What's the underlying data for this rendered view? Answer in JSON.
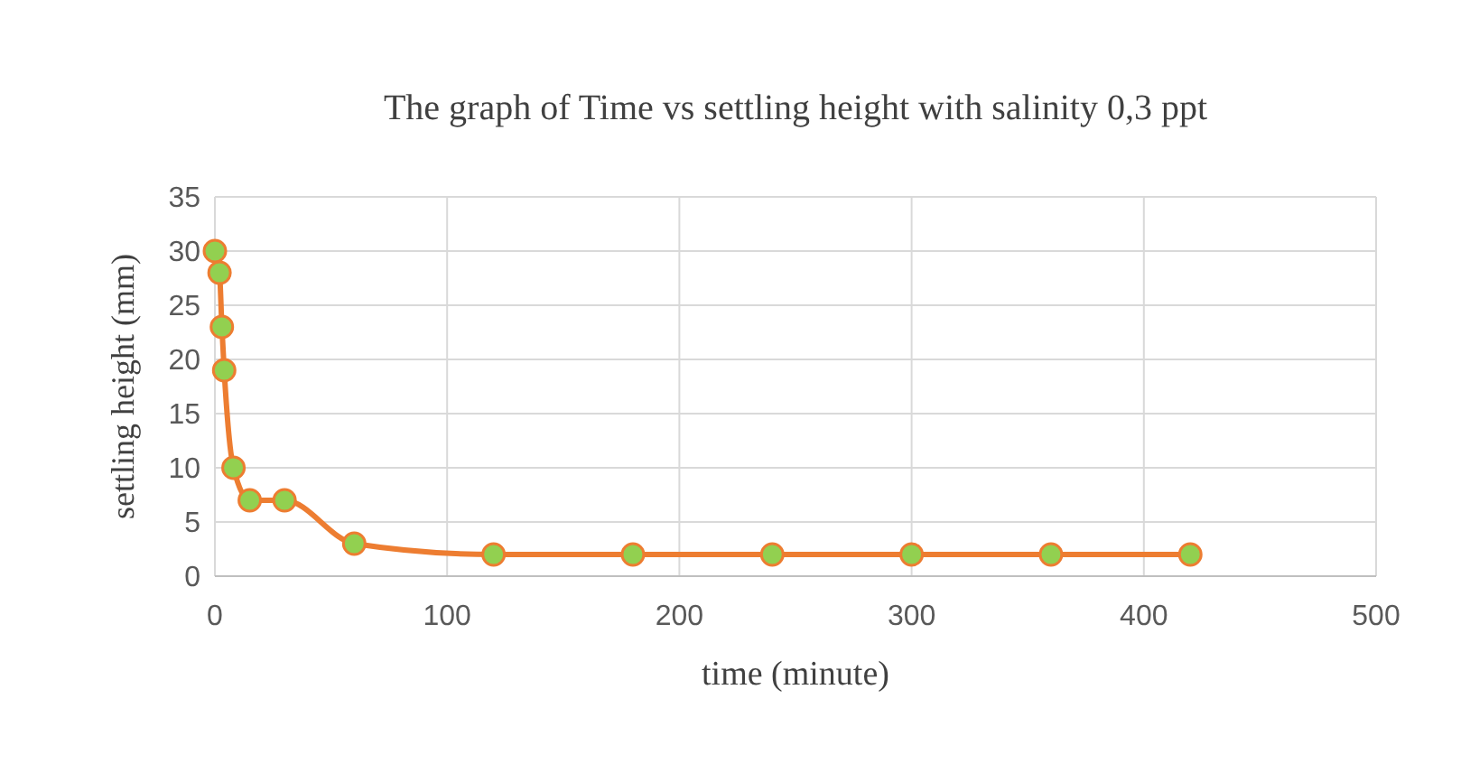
{
  "chart_data": {
    "type": "line",
    "title": "The graph of Time vs settling height with salinity 0,3 ppt",
    "xlabel": "time (minute)",
    "ylabel": "settling height (mm)",
    "x": [
      0,
      2,
      3,
      4,
      8,
      15,
      30,
      60,
      120,
      180,
      240,
      300,
      360,
      420
    ],
    "series": [
      {
        "color": "#ed7d31",
        "values": [
          30,
          28,
          23,
          19,
          10,
          7,
          7,
          3,
          2,
          2,
          2,
          2,
          2,
          2
        ]
      }
    ],
    "xlim": [
      0,
      500
    ],
    "xticks": [
      0,
      100,
      200,
      300,
      400,
      500
    ],
    "ylim": [
      0,
      35
    ],
    "yticks": [
      0,
      5,
      10,
      15,
      20,
      25,
      30,
      35
    ],
    "grid": true,
    "marker": "circle",
    "line_style": "solid"
  }
}
